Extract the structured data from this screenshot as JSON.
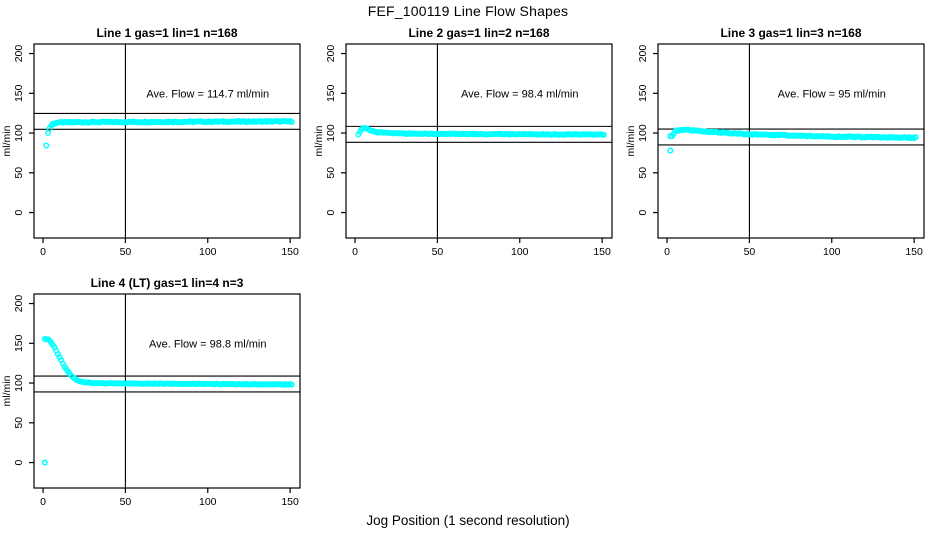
{
  "figure": {
    "title": "FEF_100119  Line Flow Shapes",
    "outer_xlabel": "Jog Position (1 second resolution)",
    "background": "#ffffff",
    "line_color": "#000000",
    "marker_color": "#00ffff"
  },
  "chart_data": {
    "type": "scatter",
    "title": "FEF_100119  Line Flow Shapes",
    "xlabel": "Jog Position (1 second resolution)",
    "ylabel": "ml/min",
    "marker": "open-circle",
    "marker_color": "#00ffff",
    "grid": false,
    "legend": "none",
    "xlim": [
      -5.5,
      156
    ],
    "ylim": [
      -32,
      212
    ],
    "x_ticks": [
      0,
      50,
      100,
      150
    ],
    "y_ticks": [
      0,
      50,
      100,
      150,
      200
    ],
    "panels": [
      {
        "id": "line-1",
        "title": "Line 1 gas=1 lin=1 n=168",
        "gas": 1,
        "lin": 1,
        "n": 168,
        "annotation": "Ave. Flow =  114.7  ml/min",
        "annotation_xy": [
          100,
          150
        ],
        "ave_flow": 114.7,
        "ave_flow_units": "ml/min",
        "vline_x": 50,
        "hlines": [
          124.7,
          104.7
        ],
        "x_start": 2,
        "x_end": 151,
        "x_step": 1,
        "jitter": 0.7,
        "keypoints": [
          [
            2,
            85
          ],
          [
            3,
            100
          ],
          [
            4,
            106
          ],
          [
            5,
            109.5
          ],
          [
            6,
            111.5
          ],
          [
            8,
            112.8
          ],
          [
            12,
            113.4
          ],
          [
            20,
            113.6
          ],
          [
            50,
            113.9
          ],
          [
            100,
            114.3
          ],
          [
            151,
            114.6
          ]
        ],
        "extra_points": []
      },
      {
        "id": "line-2",
        "title": "Line 2 gas=1 lin=2 n=168",
        "gas": 1,
        "lin": 2,
        "n": 168,
        "annotation": "Ave. Flow =  98.4  ml/min",
        "annotation_xy": [
          100,
          150
        ],
        "ave_flow": 98.4,
        "ave_flow_units": "ml/min",
        "vline_x": 50,
        "hlines": [
          108.4,
          88.4
        ],
        "x_start": 2,
        "x_end": 151,
        "x_step": 1,
        "jitter": 0.55,
        "keypoints": [
          [
            2,
            98.5
          ],
          [
            3,
            102
          ],
          [
            4,
            104.5
          ],
          [
            5,
            105.8
          ],
          [
            6,
            106
          ],
          [
            7,
            105.3
          ],
          [
            8,
            104.3
          ],
          [
            10,
            102.8
          ],
          [
            12,
            101.6
          ],
          [
            15,
            100.6
          ],
          [
            20,
            99.9
          ],
          [
            30,
            99.3
          ],
          [
            50,
            99
          ],
          [
            80,
            98.7
          ],
          [
            120,
            98.3
          ],
          [
            151,
            98
          ]
        ],
        "extra_points": []
      },
      {
        "id": "line-3",
        "title": "Line 3 gas=1 lin=3 n=168",
        "gas": 1,
        "lin": 3,
        "n": 168,
        "annotation": "Ave. Flow =  95  ml/min",
        "annotation_xy": [
          100,
          150
        ],
        "ave_flow": 95,
        "ave_flow_units": "ml/min",
        "vline_x": 50,
        "hlines": [
          105,
          85
        ],
        "x_start": 2,
        "x_end": 151,
        "x_step": 1,
        "jitter": 0.7,
        "keypoints": [
          [
            2,
            96
          ],
          [
            3,
            96.5
          ],
          [
            4,
            99
          ],
          [
            5,
            101.5
          ],
          [
            6,
            103
          ],
          [
            8,
            103.8
          ],
          [
            12,
            103.9
          ],
          [
            16,
            103.3
          ],
          [
            20,
            102.6
          ],
          [
            25,
            101.8
          ],
          [
            30,
            101
          ],
          [
            40,
            99.6
          ],
          [
            50,
            98.6
          ],
          [
            60,
            97.7
          ],
          [
            80,
            96.6
          ],
          [
            100,
            95.7
          ],
          [
            120,
            95
          ],
          [
            135,
            94.6
          ],
          [
            151,
            94.2
          ]
        ],
        "extra_points": [
          [
            2,
            78
          ]
        ]
      },
      {
        "id": "line-4",
        "title": "Line 4 (LT) gas=1 lin=4 n=3",
        "gas": 1,
        "lin": 4,
        "n": 3,
        "annotation": "Ave. Flow =  98.8  ml/min",
        "annotation_xy": [
          100,
          150
        ],
        "ave_flow": 98.8,
        "ave_flow_units": "ml/min",
        "vline_x": 50,
        "hlines": [
          108.8,
          88.8
        ],
        "x_start": 1,
        "x_end": 151,
        "x_step": 1,
        "jitter": 0.4,
        "keypoints": [
          [
            1,
            155
          ],
          [
            2,
            155.5
          ],
          [
            3,
            155.2
          ],
          [
            4,
            153.5
          ],
          [
            5,
            151
          ],
          [
            6,
            148
          ],
          [
            7,
            144.5
          ],
          [
            8,
            140.5
          ],
          [
            9,
            136.5
          ],
          [
            10,
            132.5
          ],
          [
            11,
            128.5
          ],
          [
            12,
            124.5
          ],
          [
            13,
            120.8
          ],
          [
            14,
            117.5
          ],
          [
            15,
            114.5
          ],
          [
            16,
            111.8
          ],
          [
            17,
            109.5
          ],
          [
            18,
            107.5
          ],
          [
            19,
            105.8
          ],
          [
            20,
            104.3
          ],
          [
            22,
            102.5
          ],
          [
            25,
            101
          ],
          [
            28,
            100.3
          ],
          [
            32,
            99.9
          ],
          [
            40,
            99.6
          ],
          [
            60,
            99.3
          ],
          [
            90,
            99
          ],
          [
            120,
            98.6
          ],
          [
            151,
            98.2
          ]
        ],
        "extra_points": [
          [
            1,
            0
          ]
        ]
      }
    ]
  }
}
